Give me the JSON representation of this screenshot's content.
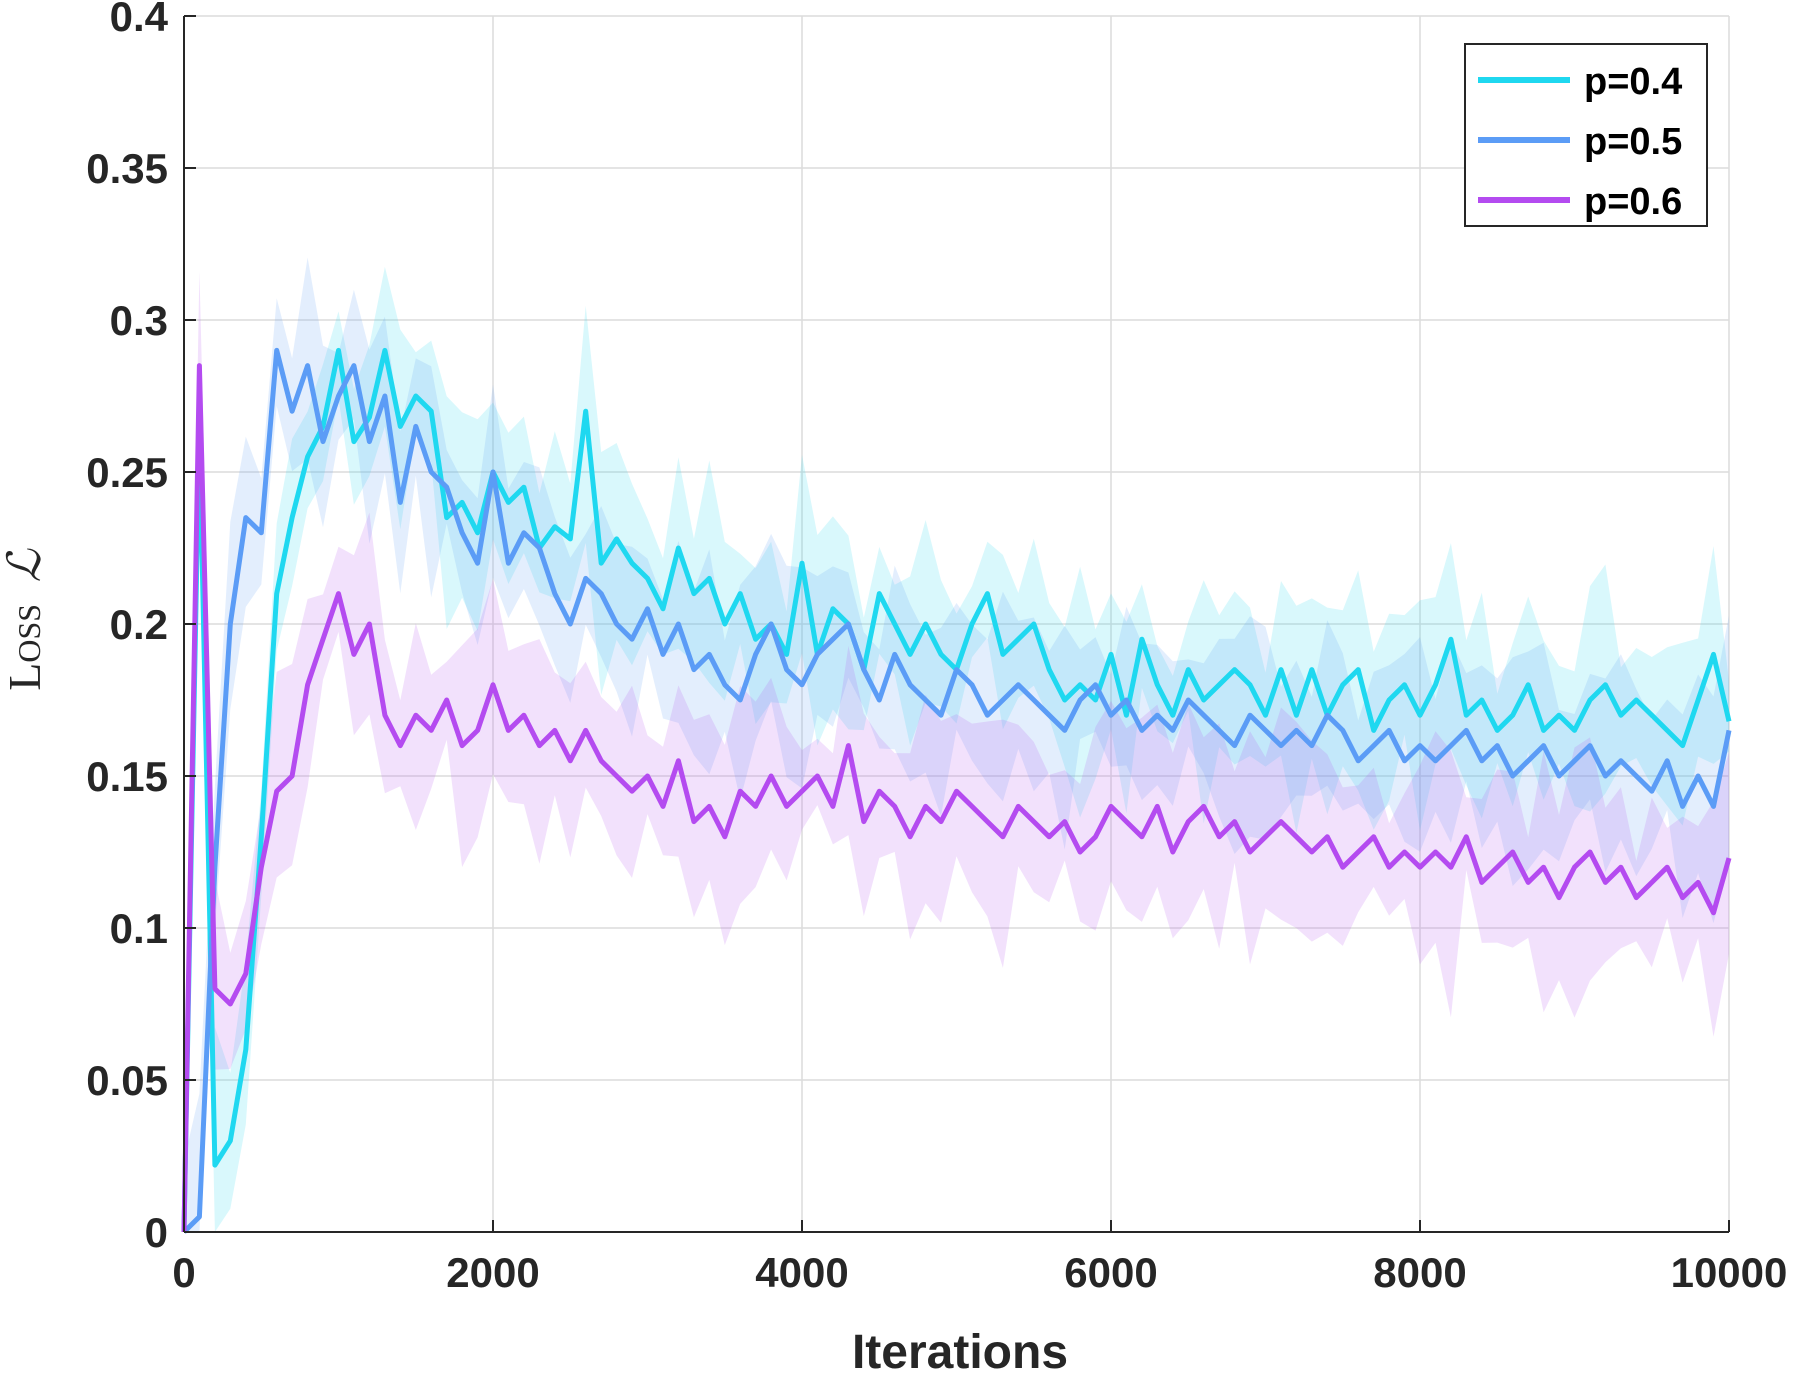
{
  "chart_data": {
    "type": "line",
    "xlabel": "Iterations",
    "ylabel": "Loss",
    "ylabel_symbol": "ℒ",
    "xlim": [
      0,
      10000
    ],
    "ylim": [
      0,
      0.4
    ],
    "xticks": [
      0,
      2000,
      4000,
      6000,
      8000,
      10000
    ],
    "yticks": [
      0,
      0.05,
      0.1,
      0.15,
      0.2,
      0.25,
      0.3,
      0.35,
      0.4
    ],
    "xtick_labels": [
      "0",
      "2000",
      "4000",
      "6000",
      "8000",
      "10000"
    ],
    "ytick_labels": [
      "0",
      "0.05",
      "0.1",
      "0.15",
      "0.2",
      "0.25",
      "0.3",
      "0.35",
      "0.4"
    ],
    "grid": true,
    "legend_position": "top-right",
    "shaded_bands": true,
    "x": [
      0,
      100,
      200,
      300,
      400,
      500,
      600,
      700,
      800,
      900,
      1000,
      1100,
      1200,
      1300,
      1400,
      1500,
      1600,
      1700,
      1800,
      1900,
      2000,
      2100,
      2200,
      2300,
      2400,
      2500,
      2600,
      2700,
      2800,
      2900,
      3000,
      3100,
      3200,
      3300,
      3400,
      3500,
      3600,
      3700,
      3800,
      3900,
      4000,
      4100,
      4200,
      4300,
      4400,
      4500,
      4600,
      4700,
      4800,
      4900,
      5000,
      5100,
      5200,
      5300,
      5400,
      5500,
      5600,
      5700,
      5800,
      5900,
      6000,
      6100,
      6200,
      6300,
      6400,
      6500,
      6600,
      6700,
      6800,
      6900,
      7000,
      7100,
      7200,
      7300,
      7400,
      7500,
      7600,
      7700,
      7800,
      7900,
      8000,
      8100,
      8200,
      8300,
      8400,
      8500,
      8600,
      8700,
      8800,
      8900,
      9000,
      9100,
      9200,
      9300,
      9400,
      9500,
      9600,
      9700,
      9800,
      9900,
      10000
    ],
    "series": [
      {
        "name": "p=0.4",
        "color": "#1fd8f0",
        "values": [
          0.0,
          0.265,
          0.022,
          0.03,
          0.06,
          0.13,
          0.21,
          0.235,
          0.255,
          0.265,
          0.29,
          0.26,
          0.268,
          0.29,
          0.265,
          0.275,
          0.27,
          0.235,
          0.24,
          0.23,
          0.25,
          0.24,
          0.245,
          0.225,
          0.232,
          0.228,
          0.27,
          0.22,
          0.228,
          0.22,
          0.215,
          0.205,
          0.225,
          0.21,
          0.215,
          0.2,
          0.21,
          0.195,
          0.2,
          0.19,
          0.22,
          0.19,
          0.205,
          0.2,
          0.185,
          0.21,
          0.2,
          0.19,
          0.2,
          0.19,
          0.185,
          0.2,
          0.21,
          0.19,
          0.195,
          0.2,
          0.185,
          0.175,
          0.18,
          0.175,
          0.19,
          0.17,
          0.195,
          0.18,
          0.17,
          0.185,
          0.175,
          0.18,
          0.185,
          0.18,
          0.17,
          0.185,
          0.17,
          0.185,
          0.17,
          0.18,
          0.185,
          0.165,
          0.175,
          0.18,
          0.17,
          0.18,
          0.195,
          0.17,
          0.175,
          0.165,
          0.17,
          0.18,
          0.165,
          0.17,
          0.165,
          0.175,
          0.18,
          0.17,
          0.175,
          0.17,
          0.165,
          0.16,
          0.175,
          0.19,
          0.168
        ]
      },
      {
        "name": "p=0.5",
        "color": "#5b9cf6",
        "values": [
          0.0,
          0.005,
          0.12,
          0.2,
          0.235,
          0.23,
          0.29,
          0.27,
          0.285,
          0.26,
          0.275,
          0.285,
          0.26,
          0.275,
          0.24,
          0.265,
          0.25,
          0.245,
          0.23,
          0.22,
          0.25,
          0.22,
          0.23,
          0.225,
          0.21,
          0.2,
          0.215,
          0.21,
          0.2,
          0.195,
          0.205,
          0.19,
          0.2,
          0.185,
          0.19,
          0.18,
          0.175,
          0.19,
          0.2,
          0.185,
          0.18,
          0.19,
          0.195,
          0.2,
          0.185,
          0.175,
          0.19,
          0.18,
          0.175,
          0.17,
          0.185,
          0.18,
          0.17,
          0.175,
          0.18,
          0.175,
          0.17,
          0.165,
          0.175,
          0.18,
          0.17,
          0.175,
          0.165,
          0.17,
          0.165,
          0.175,
          0.17,
          0.165,
          0.16,
          0.17,
          0.165,
          0.16,
          0.165,
          0.16,
          0.17,
          0.165,
          0.155,
          0.16,
          0.165,
          0.155,
          0.16,
          0.155,
          0.16,
          0.165,
          0.155,
          0.16,
          0.15,
          0.155,
          0.16,
          0.15,
          0.155,
          0.16,
          0.15,
          0.155,
          0.15,
          0.145,
          0.155,
          0.14,
          0.15,
          0.14,
          0.165
        ]
      },
      {
        "name": "p=0.6",
        "color": "#b44bf0",
        "values": [
          0.0,
          0.285,
          0.08,
          0.075,
          0.085,
          0.12,
          0.145,
          0.15,
          0.18,
          0.195,
          0.21,
          0.19,
          0.2,
          0.17,
          0.16,
          0.17,
          0.165,
          0.175,
          0.16,
          0.165,
          0.18,
          0.165,
          0.17,
          0.16,
          0.165,
          0.155,
          0.165,
          0.155,
          0.15,
          0.145,
          0.15,
          0.14,
          0.155,
          0.135,
          0.14,
          0.13,
          0.145,
          0.14,
          0.15,
          0.14,
          0.145,
          0.15,
          0.14,
          0.16,
          0.135,
          0.145,
          0.14,
          0.13,
          0.14,
          0.135,
          0.145,
          0.14,
          0.135,
          0.13,
          0.14,
          0.135,
          0.13,
          0.135,
          0.125,
          0.13,
          0.14,
          0.135,
          0.13,
          0.14,
          0.125,
          0.135,
          0.14,
          0.13,
          0.135,
          0.125,
          0.13,
          0.135,
          0.13,
          0.125,
          0.13,
          0.12,
          0.125,
          0.13,
          0.12,
          0.125,
          0.12,
          0.125,
          0.12,
          0.13,
          0.115,
          0.12,
          0.125,
          0.115,
          0.12,
          0.11,
          0.12,
          0.125,
          0.115,
          0.12,
          0.11,
          0.115,
          0.12,
          0.11,
          0.115,
          0.105,
          0.123
        ]
      }
    ]
  }
}
